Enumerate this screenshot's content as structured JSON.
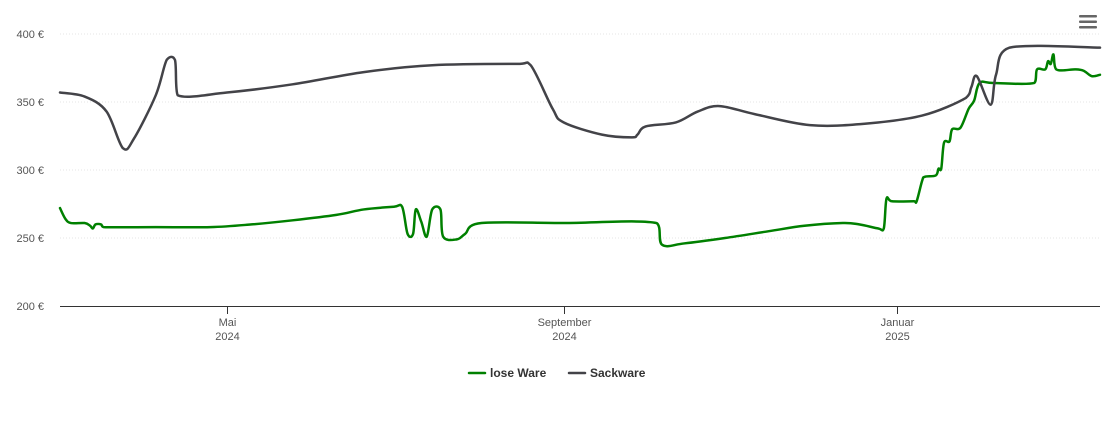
{
  "chart_data": {
    "type": "line",
    "title": "",
    "xlabel": "",
    "ylabel": "",
    "x_range": [
      "2024-03-01",
      "2025-03-16"
    ],
    "ylim": [
      200,
      400
    ],
    "y_ticks": [
      {
        "value": 200,
        "label": "200 €"
      },
      {
        "value": 250,
        "label": "250 €"
      },
      {
        "value": 300,
        "label": "300 €"
      },
      {
        "value": 350,
        "label": "350 €"
      },
      {
        "value": 400,
        "label": "400 €"
      }
    ],
    "x_ticks": [
      {
        "date": "2024-05-01",
        "label": "Mai",
        "year": "2024"
      },
      {
        "date": "2024-09-01",
        "label": "September",
        "year": "2024"
      },
      {
        "date": "2025-01-01",
        "label": "Januar",
        "year": "2025"
      }
    ],
    "grid": true,
    "legend_position": "bottom-center",
    "series": [
      {
        "name": "lose Ware",
        "color": "#008000",
        "points": [
          [
            "2024-03-01",
            272
          ],
          [
            "2024-03-03",
            264
          ],
          [
            "2024-03-05",
            261
          ],
          [
            "2024-03-10",
            261
          ],
          [
            "2024-03-12",
            259
          ],
          [
            "2024-03-13",
            257
          ],
          [
            "2024-03-14",
            260
          ],
          [
            "2024-03-16",
            260
          ],
          [
            "2024-03-17",
            258
          ],
          [
            "2024-04-05",
            258
          ],
          [
            "2024-04-25",
            258
          ],
          [
            "2024-05-10",
            260
          ],
          [
            "2024-05-25",
            263
          ],
          [
            "2024-06-10",
            267
          ],
          [
            "2024-06-20",
            271
          ],
          [
            "2024-07-01",
            273
          ],
          [
            "2024-07-04",
            273
          ],
          [
            "2024-07-06",
            253
          ],
          [
            "2024-07-08",
            253
          ],
          [
            "2024-07-09",
            271
          ],
          [
            "2024-07-11",
            262
          ],
          [
            "2024-07-13",
            251
          ],
          [
            "2024-07-15",
            271
          ],
          [
            "2024-07-18",
            271
          ],
          [
            "2024-07-19",
            251
          ],
          [
            "2024-07-24",
            249
          ],
          [
            "2024-07-27",
            253
          ],
          [
            "2024-08-02",
            261
          ],
          [
            "2024-09-01",
            261
          ],
          [
            "2024-10-05",
            261
          ],
          [
            "2024-10-07",
            245
          ],
          [
            "2024-10-15",
            246
          ],
          [
            "2024-10-30",
            250
          ],
          [
            "2024-11-15",
            255
          ],
          [
            "2024-11-28",
            259
          ],
          [
            "2024-12-12",
            261
          ],
          [
            "2024-12-18",
            260
          ],
          [
            "2024-12-25",
            257
          ],
          [
            "2024-12-27",
            257
          ],
          [
            "2024-12-28",
            279
          ],
          [
            "2024-12-30",
            277
          ],
          [
            "2025-01-07",
            277
          ],
          [
            "2025-01-08",
            277
          ],
          [
            "2025-01-10",
            292
          ],
          [
            "2025-01-11",
            295
          ],
          [
            "2025-01-15",
            296
          ],
          [
            "2025-01-16",
            301
          ],
          [
            "2025-01-17",
            301
          ],
          [
            "2025-01-18",
            320
          ],
          [
            "2025-01-20",
            321
          ],
          [
            "2025-01-21",
            330
          ],
          [
            "2025-01-24",
            331
          ],
          [
            "2025-01-27",
            345
          ],
          [
            "2025-01-29",
            351
          ],
          [
            "2025-01-31",
            364
          ],
          [
            "2025-02-05",
            364
          ],
          [
            "2025-02-20",
            364
          ],
          [
            "2025-02-21",
            374
          ],
          [
            "2025-02-24",
            374
          ],
          [
            "2025-02-25",
            380
          ],
          [
            "2025-02-26",
            378
          ],
          [
            "2025-02-27",
            385
          ],
          [
            "2025-02-28",
            374
          ],
          [
            "2025-03-07",
            374
          ],
          [
            "2025-03-10",
            373
          ],
          [
            "2025-03-13",
            369
          ],
          [
            "2025-03-16",
            370
          ]
        ]
      },
      {
        "name": "Sackware",
        "color": "#434348",
        "points": [
          [
            "2024-03-01",
            357
          ],
          [
            "2024-03-10",
            354
          ],
          [
            "2024-03-18",
            343
          ],
          [
            "2024-03-24",
            316
          ],
          [
            "2024-03-28",
            323
          ],
          [
            "2024-04-05",
            355
          ],
          [
            "2024-04-09",
            381
          ],
          [
            "2024-04-12",
            381
          ],
          [
            "2024-04-13",
            355
          ],
          [
            "2024-05-01",
            357
          ],
          [
            "2024-05-25",
            363
          ],
          [
            "2024-06-20",
            372
          ],
          [
            "2024-07-15",
            377
          ],
          [
            "2024-08-15",
            378
          ],
          [
            "2024-08-20",
            377
          ],
          [
            "2024-08-28",
            345
          ],
          [
            "2024-09-01",
            335
          ],
          [
            "2024-09-15",
            326
          ],
          [
            "2024-09-26",
            324
          ],
          [
            "2024-09-28",
            326
          ],
          [
            "2024-10-01",
            332
          ],
          [
            "2024-10-12",
            335
          ],
          [
            "2024-10-20",
            343
          ],
          [
            "2024-10-28",
            347
          ],
          [
            "2024-11-10",
            341
          ],
          [
            "2024-11-30",
            333
          ],
          [
            "2024-12-20",
            334
          ],
          [
            "2025-01-10",
            340
          ],
          [
            "2025-01-26",
            353
          ],
          [
            "2025-01-28",
            361
          ],
          [
            "2025-01-30",
            369
          ],
          [
            "2025-02-04",
            348
          ],
          [
            "2025-02-06",
            370
          ],
          [
            "2025-02-11",
            390
          ],
          [
            "2025-03-16",
            390
          ]
        ]
      }
    ]
  },
  "menu": {
    "icon": "hamburger-menu-icon"
  }
}
